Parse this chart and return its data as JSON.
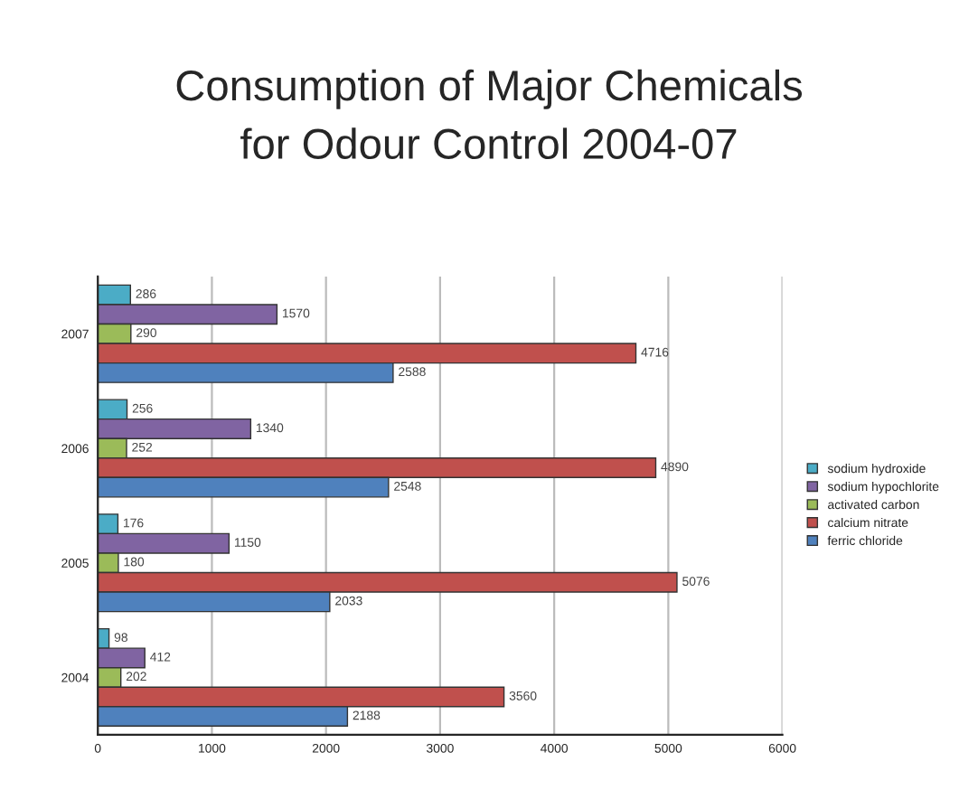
{
  "chart_data": {
    "type": "bar",
    "orientation": "horizontal",
    "title": "Consumption of Major Chemicals\nfor Odour Control 2004-07",
    "categories": [
      "2007",
      "2006",
      "2005",
      "2004"
    ],
    "series": [
      {
        "name": "sodium hydroxide",
        "color": "#4bacc6",
        "values": [
          286,
          256,
          176,
          98
        ]
      },
      {
        "name": "sodium hypochlorite",
        "color": "#8064a2",
        "values": [
          1570,
          1340,
          1150,
          412
        ]
      },
      {
        "name": "activated carbon",
        "color": "#9bbb59",
        "values": [
          290,
          252,
          180,
          202
        ]
      },
      {
        "name": "calcium nitrate",
        "color": "#c0504d",
        "values": [
          4716,
          4890,
          5076,
          3560
        ]
      },
      {
        "name": "ferric chloride",
        "color": "#4f81bd",
        "values": [
          2588,
          2548,
          2033,
          2188
        ]
      }
    ],
    "xlim": [
      0,
      6000
    ],
    "xticks": [
      0,
      1000,
      2000,
      3000,
      4000,
      5000,
      6000
    ],
    "grid": "x",
    "legend": "right",
    "data_labels": true
  }
}
